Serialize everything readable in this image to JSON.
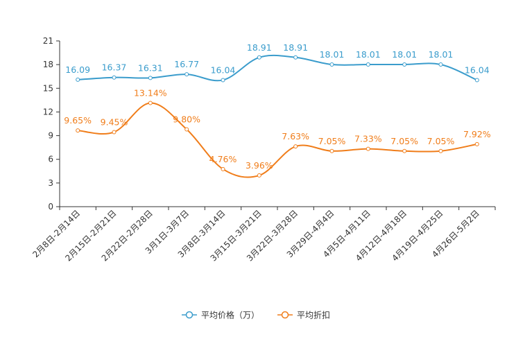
{
  "chart_data": {
    "type": "line",
    "title": "",
    "xlabel": "",
    "ylabel": "",
    "ylim": [
      0,
      21
    ],
    "yticks": [
      0,
      3,
      6,
      9,
      12,
      15,
      18,
      21
    ],
    "grid": false,
    "legend_position": "bottom-center",
    "categories": [
      "2月8日-2月14日",
      "2月15日-2月21日",
      "2月22日-2月28日",
      "3月1日-3月7日",
      "3月8日-3月14日",
      "3月15日-3月21日",
      "3月22日-3月28日",
      "3月29日-4月4日",
      "4月5日-4月11日",
      "4月12日-4月18日",
      "4月19日-4月25日",
      "4月26日-5月2日"
    ],
    "series": [
      {
        "name": "平均价格（万）",
        "color": "#3a9ccc",
        "values": [
          16.09,
          16.37,
          16.31,
          16.77,
          16.04,
          18.91,
          18.91,
          18.01,
          18.01,
          18.01,
          18.01,
          16.04
        ],
        "labels": [
          "16.09",
          "16.37",
          "16.31",
          "16.77",
          "16.04",
          "18.91",
          "18.91",
          "18.01",
          "18.01",
          "18.01",
          "18.01",
          "16.04"
        ]
      },
      {
        "name": "平均折扣",
        "color": "#f07d1a",
        "values": [
          9.65,
          9.45,
          13.14,
          9.8,
          4.76,
          3.96,
          7.63,
          7.05,
          7.33,
          7.05,
          7.05,
          7.92
        ],
        "labels": [
          "9.65%",
          "9.45%",
          "13.14%",
          "9.80%",
          "4.76%",
          "3.96%",
          "7.63%",
          "7.05%",
          "7.33%",
          "7.05%",
          "7.05%",
          "7.92%"
        ]
      }
    ]
  }
}
